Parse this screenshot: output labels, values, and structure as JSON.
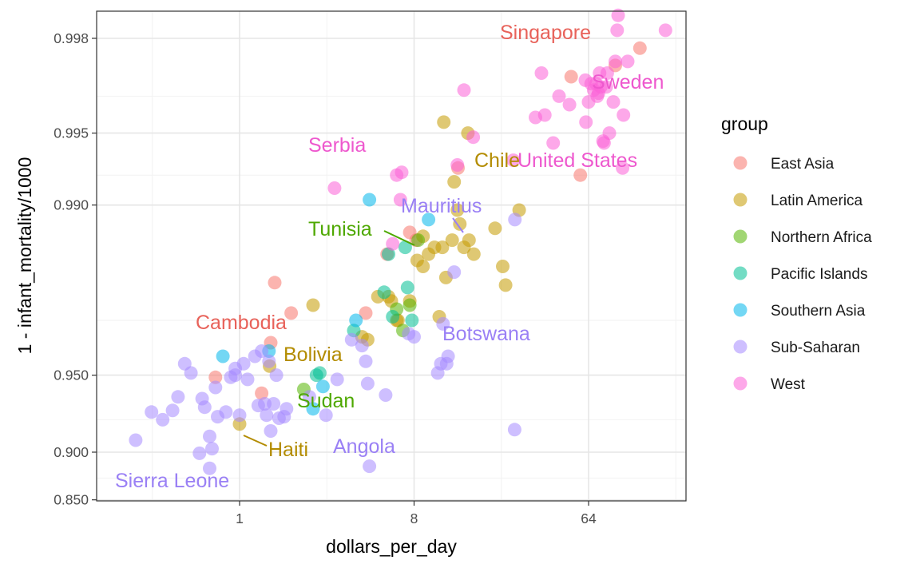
{
  "chart_data": {
    "type": "scatter",
    "title": "",
    "xlabel": "dollars_per_day",
    "ylabel": "1 - infant_mortality/1000",
    "x_scale": "log2",
    "y_scale": "logit (labeled as 1 - infant_mortality/1000)",
    "xlim": [
      0.2,
      200
    ],
    "ylim": [
      0.85,
      0.9985
    ],
    "x_ticks": [
      {
        "value": 1,
        "label": "1"
      },
      {
        "value": 8,
        "label": "8"
      },
      {
        "value": 64,
        "label": "64"
      }
    ],
    "y_ticks": [
      {
        "value": 0.85,
        "label": "0.850"
      },
      {
        "value": 0.9,
        "label": "0.900"
      },
      {
        "value": 0.95,
        "label": "0.950"
      },
      {
        "value": 0.99,
        "label": "0.990"
      },
      {
        "value": 0.995,
        "label": "0.995"
      },
      {
        "value": 0.998,
        "label": "0.998"
      }
    ],
    "grid": true,
    "legend_position": "right",
    "legend_title": "group",
    "series": [
      {
        "name": "East Asia",
        "color": "#F8766D",
        "points": [
          [
            0.75,
            0.949
          ],
          [
            1.3,
            0.941
          ],
          [
            1.45,
            0.963
          ],
          [
            1.52,
            0.979
          ],
          [
            1.85,
            0.972
          ],
          [
            4.5,
            0.972
          ],
          [
            5.8,
            0.984
          ],
          [
            7.6,
            0.987
          ],
          [
            8.2,
            0.986
          ],
          [
            13.5,
            0.993
          ],
          [
            52,
            0.9971
          ],
          [
            58,
            0.9925
          ],
          [
            88,
            0.9974
          ],
          [
            118,
            0.9978
          ]
        ]
      },
      {
        "name": "Latin America",
        "color": "#C49A00",
        "points": [
          [
            1,
            0.922
          ],
          [
            1.43,
            0.954
          ],
          [
            2.4,
            0.974
          ],
          [
            4.3,
            0.965
          ],
          [
            4.6,
            0.964
          ],
          [
            5.2,
            0.976
          ],
          [
            5.9,
            0.976
          ],
          [
            6.1,
            0.975
          ],
          [
            6.6,
            0.97
          ],
          [
            6.5,
            0.97
          ],
          [
            7.6,
            0.975
          ],
          [
            8.3,
            0.983
          ],
          [
            8.9,
            0.982
          ],
          [
            9.5,
            0.984
          ],
          [
            10.2,
            0.985
          ],
          [
            10.8,
            0.971
          ],
          [
            11.2,
            0.985
          ],
          [
            11.7,
            0.98
          ],
          [
            12.6,
            0.986
          ],
          [
            12.9,
            0.992
          ],
          [
            13.4,
            0.9895
          ],
          [
            13.8,
            0.988
          ],
          [
            14.5,
            0.985
          ],
          [
            15.2,
            0.995
          ],
          [
            15.4,
            0.986
          ],
          [
            16.3,
            0.984
          ],
          [
            21,
            0.9875
          ],
          [
            23,
            0.982
          ],
          [
            23.8,
            0.9785
          ],
          [
            28,
            0.9895
          ],
          [
            11.4,
            0.9955
          ],
          [
            8.9,
            0.9865
          ]
        ]
      },
      {
        "name": "Northern Africa",
        "color": "#53B400",
        "points": [
          [
            2.15,
            0.943
          ],
          [
            6.5,
            0.973
          ],
          [
            7.0,
            0.967
          ],
          [
            7.6,
            0.974
          ],
          [
            8.4,
            0.986
          ]
        ]
      },
      {
        "name": "Pacific Islands",
        "color": "#00C094",
        "points": [
          [
            2.6,
            0.951
          ],
          [
            2.5,
            0.95
          ],
          [
            3.9,
            0.967
          ],
          [
            5.6,
            0.977
          ],
          [
            7.4,
            0.978
          ],
          [
            7.8,
            0.97
          ],
          [
            5.9,
            0.984
          ],
          [
            7.2,
            0.985
          ],
          [
            6.2,
            0.971
          ]
        ]
      },
      {
        "name": "Southern Asia",
        "color": "#00B6EB",
        "points": [
          [
            0.82,
            0.958
          ],
          [
            1.42,
            0.96
          ],
          [
            2.7,
            0.9445
          ],
          [
            2.4,
            0.932
          ],
          [
            4.0,
            0.97
          ],
          [
            4.7,
            0.9905
          ],
          [
            9.5,
            0.9885
          ]
        ]
      },
      {
        "name": "Sub-Saharan",
        "color": "#A58AFF",
        "points": [
          [
            0.29,
            0.91
          ],
          [
            0.35,
            0.93
          ],
          [
            0.4,
            0.925
          ],
          [
            0.45,
            0.931
          ],
          [
            0.48,
            0.939
          ],
          [
            0.52,
            0.955
          ],
          [
            0.56,
            0.951
          ],
          [
            0.62,
            0.899
          ],
          [
            0.64,
            0.938
          ],
          [
            0.66,
            0.933
          ],
          [
            0.7,
            0.885
          ],
          [
            0.7,
            0.913
          ],
          [
            0.72,
            0.903
          ],
          [
            0.75,
            0.944
          ],
          [
            0.77,
            0.927
          ],
          [
            0.85,
            0.93
          ],
          [
            0.9,
            0.949
          ],
          [
            0.95,
            0.953
          ],
          [
            1.0,
            0.928
          ],
          [
            0.95,
            0.95
          ],
          [
            1.05,
            0.955
          ],
          [
            1.1,
            0.948
          ],
          [
            1.2,
            0.958
          ],
          [
            1.3,
            0.96
          ],
          [
            1.25,
            0.934
          ],
          [
            1.35,
            0.935
          ],
          [
            1.38,
            0.928
          ],
          [
            1.45,
            0.917
          ],
          [
            1.5,
            0.935
          ],
          [
            1.6,
            0.926
          ],
          [
            1.7,
            0.927
          ],
          [
            1.42,
            0.956
          ],
          [
            1.55,
            0.95
          ],
          [
            1.75,
            0.932
          ],
          [
            2.3,
            0.939
          ],
          [
            2.8,
            0.928
          ],
          [
            3.2,
            0.948
          ],
          [
            3.8,
            0.964
          ],
          [
            4.3,
            0.962
          ],
          [
            4.6,
            0.946
          ],
          [
            4.5,
            0.956
          ],
          [
            4.7,
            0.887
          ],
          [
            5.7,
            0.94
          ],
          [
            7.5,
            0.966
          ],
          [
            11.3,
            0.969
          ],
          [
            8.0,
            0.965
          ],
          [
            10.6,
            0.951
          ],
          [
            11.0,
            0.955
          ],
          [
            11.8,
            0.955
          ],
          [
            12.0,
            0.958
          ],
          [
            12.9,
            0.981
          ],
          [
            26.6,
            0.9885
          ],
          [
            26.5,
            0.918
          ]
        ]
      },
      {
        "name": "West",
        "color": "#FB61D7",
        "points": [
          [
            3.1,
            0.9915
          ],
          [
            6.5,
            0.9925
          ],
          [
            6.9,
            0.9927
          ],
          [
            6.8,
            0.9905
          ],
          [
            6.2,
            0.9855
          ],
          [
            13.4,
            0.9932
          ],
          [
            14.5,
            0.9967
          ],
          [
            16.2,
            0.9948
          ],
          [
            26.1,
            0.9935
          ],
          [
            34,
            0.9957
          ],
          [
            36.5,
            0.9972
          ],
          [
            38,
            0.9958
          ],
          [
            42,
            0.9945
          ],
          [
            45,
            0.9965
          ],
          [
            51,
            0.9962
          ],
          [
            61.6,
            0.997
          ],
          [
            62,
            0.9955
          ],
          [
            64,
            0.9963
          ],
          [
            66,
            0.9969
          ],
          [
            68,
            0.9967
          ],
          [
            70,
            0.9969
          ],
          [
            71,
            0.9965
          ],
          [
            72,
            0.9966
          ],
          [
            73,
            0.9972
          ],
          [
            74,
            0.9968
          ],
          [
            76,
            0.9946
          ],
          [
            77,
            0.9945
          ],
          [
            79,
            0.9968
          ],
          [
            80,
            0.9972
          ],
          [
            82,
            0.995
          ],
          [
            86,
            0.9963
          ],
          [
            88,
            0.9975
          ],
          [
            91,
            0.9984
          ],
          [
            96,
            0.993
          ],
          [
            97,
            0.9958
          ],
          [
            102,
            0.9975
          ],
          [
            117,
            0.9989
          ],
          [
            160,
            0.99815
          ],
          [
            90,
            0.99815
          ]
        ]
      }
    ],
    "annotations": [
      {
        "text": "Singapore",
        "group": "East Asia",
        "x": 78,
        "y": 0.99815
      },
      {
        "text": "Sweden",
        "group": "West",
        "x": 84,
        "y": 0.997
      },
      {
        "text": "Serbia",
        "group": "West",
        "x": 3.1,
        "y": 0.9932
      },
      {
        "text": "Chile",
        "group": "Latin America",
        "x": 13.5,
        "y": 0.9925
      },
      {
        "text": "United States",
        "group": "West",
        "x": 60,
        "y": 0.9927
      },
      {
        "text": "Mauritius",
        "group": "Sub-Saharan",
        "x": 10.4,
        "y": 0.9888
      },
      {
        "text": "Tunisia",
        "group": "Northern Africa",
        "x": 3.4,
        "y": 0.9866
      },
      {
        "text": "Cambodia",
        "group": "East Asia",
        "x": 1.0,
        "y": 0.966
      },
      {
        "text": "Botswana",
        "group": "Sub-Saharan",
        "x": 21,
        "y": 0.966
      },
      {
        "text": "Bolivia",
        "group": "Latin America",
        "x": 2.5,
        "y": 0.955
      },
      {
        "text": "Sudan",
        "group": "Northern Africa",
        "x": 3.1,
        "y": 0.933
      },
      {
        "text": "Angola",
        "group": "Sub-Saharan",
        "x": 5.7,
        "y": 0.902
      },
      {
        "text": "Haiti",
        "group": "Latin America",
        "x": 2.0,
        "y": 0.902
      },
      {
        "text": "Sierra Leone",
        "group": "Sub-Saharan",
        "x": 0.5,
        "y": 0.868
      }
    ]
  }
}
